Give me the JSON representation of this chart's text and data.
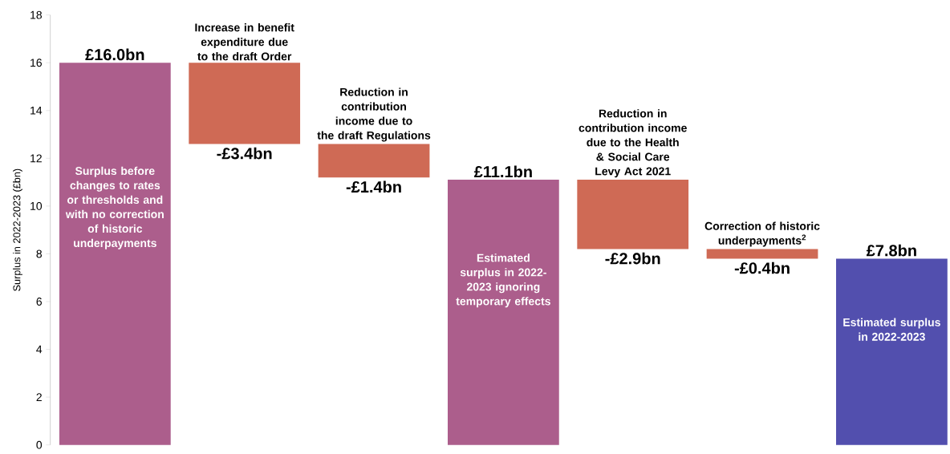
{
  "chart_data": {
    "type": "bar",
    "ylabel": "Surplus in 2022-2023 (£bn)",
    "categories": [
      "Surplus before changes to rates or thresholds and with no correction of historic underpayments",
      "Increase in benefit expenditure due to the draft Order",
      "Reduction in contribution income due to the draft Regulations",
      "Estimated surplus in 2022-2023 ignoring temporary effects",
      "Reduction in contribution income due to the  Health & Social Care Levy Act 2021",
      "Correction of historic underpayments$^{2}$",
      "Estimated surplus in 2022-2023"
    ],
    "values": [
      16.0,
      -3.4,
      -1.4,
      11.1,
      -2.9,
      -0.4,
      7.8
    ],
    "base": [
      0,
      16.0,
      12.6,
      0,
      11.1,
      8.2,
      0
    ],
    "colors": [
      "#ac5e8c",
      "#cf6a55",
      "#cf6a55",
      "#ac5e8c",
      "#cf6a55",
      "#cf6a55",
      "#524fae"
    ],
    "value_labels": [
      "£16.0bn",
      "-£3.4bn",
      "-£1.4bn",
      "£11.1bn",
      "-£2.9bn",
      "-£0.4bn",
      "£7.8bn"
    ],
    "ylim": [
      0,
      18
    ],
    "yticks": [
      0,
      2,
      4,
      6,
      8,
      10,
      12,
      14,
      16,
      18
    ],
    "tick_labels": "y"
  }
}
